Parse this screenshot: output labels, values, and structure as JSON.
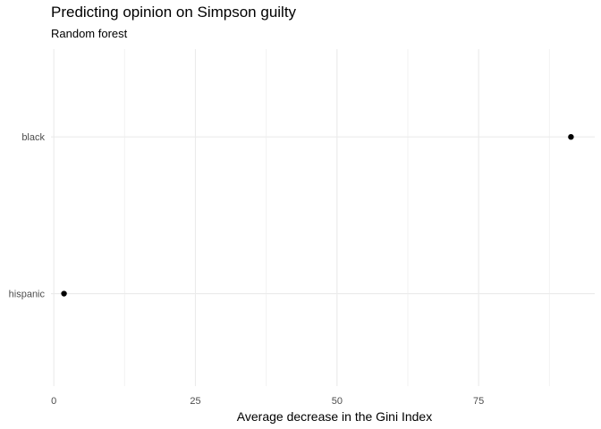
{
  "chart_data": {
    "type": "scatter",
    "title": "Predicting opinion on Simpson guilty",
    "subtitle": "Random forest",
    "xlabel": "Average decrease in the Gini Index",
    "ylabel": "",
    "categories": [
      "black",
      "hispanic"
    ],
    "values": [
      91.3,
      1.8
    ],
    "xlim": [
      -0.5,
      95.5
    ],
    "x_ticks": [
      "0",
      "25",
      "50",
      "75"
    ],
    "grid": true,
    "legend": "none"
  }
}
